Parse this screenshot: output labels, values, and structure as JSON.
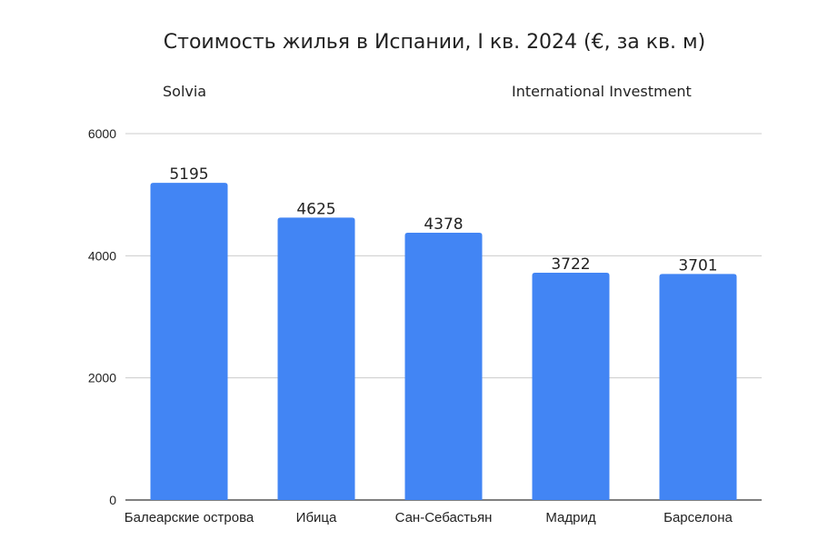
{
  "chart_data": {
    "type": "bar",
    "title": "Стоимость жилья в Испании, I кв. 2024 (€, за кв. м)",
    "annotations": [
      "Solvia",
      "International Investment"
    ],
    "categories": [
      "Балеарские острова",
      "Ибица",
      "Сан-Себастьян",
      "Мадрид",
      "Барселона"
    ],
    "values": [
      5195,
      4625,
      4378,
      3722,
      3701
    ],
    "ylim": [
      0,
      6000
    ],
    "yticks": [
      0,
      2000,
      4000,
      6000
    ],
    "grid": true,
    "legend": "none",
    "bar_color": "#4285f4",
    "grid_color": "#cccccc"
  }
}
